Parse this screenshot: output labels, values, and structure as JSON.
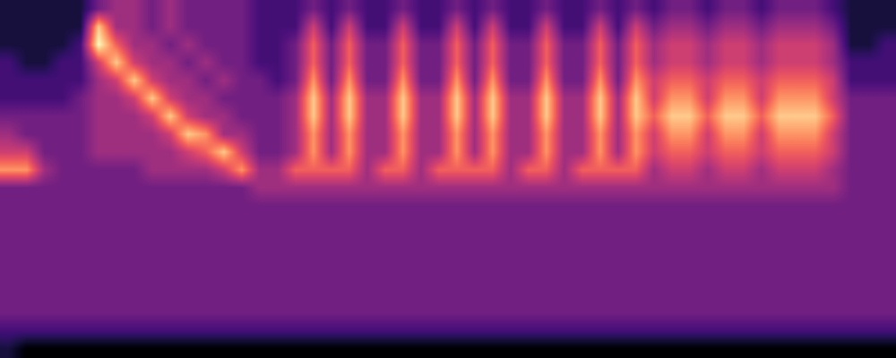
{
  "chart_data": {
    "type": "heatmap",
    "tick_labels": false,
    "color": "magma",
    "zlim": [
      0,
      9
    ],
    "cells": [
      [
        1,
        1,
        1,
        1,
        1,
        3,
        4,
        4,
        3,
        4,
        3,
        3,
        3,
        3,
        2,
        2,
        2,
        3,
        2,
        3,
        2,
        2,
        3,
        2,
        2,
        3,
        2,
        3,
        2,
        2,
        3,
        2,
        2,
        3,
        2,
        3,
        2,
        3,
        3,
        2,
        3,
        3,
        2,
        3,
        3,
        3,
        2,
        1,
        1,
        1
      ],
      [
        1,
        1,
        1,
        1,
        1,
        8,
        4,
        4,
        3,
        4,
        3,
        3,
        3,
        3,
        2,
        2,
        2,
        5,
        2,
        5,
        2,
        2,
        5,
        2,
        2,
        5,
        2,
        5,
        2,
        2,
        5,
        2,
        2,
        5,
        2,
        5,
        3,
        4,
        4,
        3,
        4,
        4,
        3,
        4,
        4,
        4,
        3,
        1,
        1,
        1
      ],
      [
        1,
        1,
        1,
        1,
        2,
        9,
        6,
        4,
        4,
        3,
        4,
        3,
        3,
        3,
        2,
        2,
        3,
        6,
        3,
        6,
        3,
        3,
        6,
        3,
        3,
        6,
        3,
        6,
        3,
        3,
        6,
        3,
        3,
        6,
        3,
        6,
        4,
        5,
        5,
        4,
        5,
        5,
        4,
        5,
        5,
        5,
        4,
        1,
        1,
        2
      ],
      [
        2,
        1,
        1,
        2,
        2,
        5,
        8,
        5,
        4,
        4,
        3,
        4,
        3,
        3,
        2,
        2,
        3,
        6,
        3,
        6,
        3,
        3,
        6,
        3,
        3,
        6,
        3,
        6,
        3,
        3,
        6,
        3,
        3,
        6,
        3,
        6,
        4,
        5,
        5,
        4,
        5,
        5,
        4,
        5,
        5,
        5,
        4,
        2,
        2,
        2
      ],
      [
        2,
        2,
        2,
        2,
        2,
        4,
        5,
        8,
        5,
        4,
        4,
        3,
        4,
        3,
        3,
        2,
        3,
        7,
        3,
        7,
        3,
        3,
        7,
        3,
        3,
        7,
        3,
        7,
        3,
        3,
        7,
        3,
        3,
        7,
        3,
        7,
        5,
        6,
        6,
        5,
        6,
        6,
        5,
        6,
        6,
        6,
        5,
        2,
        2,
        2
      ],
      [
        2,
        2,
        2,
        2,
        3,
        4,
        4,
        5,
        8,
        5,
        4,
        4,
        3,
        3,
        3,
        3,
        4,
        8,
        4,
        8,
        4,
        4,
        8,
        4,
        4,
        8,
        4,
        8,
        4,
        4,
        8,
        4,
        4,
        8,
        4,
        8,
        5,
        7,
        7,
        5,
        7,
        7,
        5,
        7,
        7,
        7,
        5,
        3,
        3,
        3
      ],
      [
        3,
        3,
        3,
        3,
        3,
        4,
        4,
        4,
        5,
        8,
        5,
        4,
        4,
        3,
        3,
        3,
        4,
        8,
        4,
        8,
        4,
        4,
        8,
        4,
        4,
        8,
        4,
        8,
        4,
        4,
        8,
        4,
        4,
        8,
        4,
        8,
        6,
        8,
        8,
        6,
        8,
        8,
        6,
        8,
        8,
        8,
        6,
        3,
        3,
        3
      ],
      [
        4,
        3,
        3,
        3,
        3,
        4,
        4,
        4,
        4,
        5,
        8,
        7,
        4,
        4,
        3,
        3,
        4,
        7,
        4,
        7,
        4,
        4,
        7,
        4,
        4,
        7,
        4,
        7,
        4,
        4,
        7,
        4,
        4,
        7,
        4,
        7,
        5,
        7,
        7,
        5,
        7,
        7,
        5,
        7,
        7,
        7,
        5,
        3,
        3,
        3
      ],
      [
        5,
        5,
        3,
        3,
        3,
        4,
        4,
        4,
        4,
        4,
        5,
        6,
        8,
        5,
        3,
        3,
        4,
        7,
        4,
        7,
        4,
        4,
        7,
        4,
        4,
        7,
        4,
        7,
        4,
        4,
        7,
        4,
        4,
        7,
        4,
        7,
        5,
        6,
        6,
        5,
        6,
        6,
        5,
        6,
        6,
        6,
        5,
        3,
        3,
        3
      ],
      [
        7,
        7,
        4,
        3,
        3,
        3,
        3,
        3,
        4,
        4,
        4,
        4,
        5,
        7,
        4,
        4,
        6,
        6,
        6,
        6,
        4,
        6,
        6,
        4,
        6,
        6,
        6,
        6,
        4,
        6,
        6,
        4,
        6,
        6,
        6,
        6,
        4,
        5,
        5,
        4,
        5,
        5,
        4,
        5,
        5,
        5,
        4,
        3,
        3,
        3
      ],
      [
        3,
        3,
        3,
        3,
        3,
        3,
        3,
        3,
        3,
        3,
        3,
        3,
        3,
        3,
        4,
        4,
        4,
        4,
        4,
        4,
        4,
        4,
        4,
        4,
        4,
        4,
        4,
        4,
        4,
        4,
        4,
        4,
        4,
        4,
        4,
        4,
        4,
        4,
        4,
        4,
        4,
        4,
        4,
        4,
        4,
        4,
        4,
        3,
        3,
        3
      ],
      [
        3,
        3,
        3,
        3,
        3,
        3,
        3,
        3,
        3,
        3,
        3,
        3,
        3,
        3,
        3,
        3,
        3,
        3,
        3,
        3,
        3,
        3,
        3,
        3,
        3,
        3,
        3,
        3,
        3,
        3,
        3,
        3,
        3,
        3,
        3,
        3,
        3,
        3,
        3,
        3,
        3,
        3,
        3,
        3,
        3,
        3,
        3,
        3,
        3,
        3
      ],
      [
        3,
        3,
        3,
        3,
        3,
        3,
        3,
        3,
        3,
        3,
        3,
        3,
        3,
        3,
        3,
        3,
        3,
        3,
        3,
        3,
        3,
        3,
        3,
        3,
        3,
        3,
        3,
        3,
        3,
        3,
        3,
        3,
        3,
        3,
        3,
        3,
        3,
        3,
        3,
        3,
        3,
        3,
        3,
        3,
        3,
        3,
        3,
        3,
        3,
        3
      ],
      [
        3,
        3,
        3,
        3,
        3,
        3,
        3,
        3,
        3,
        3,
        3,
        3,
        3,
        3,
        3,
        3,
        3,
        3,
        3,
        3,
        3,
        3,
        3,
        3,
        3,
        3,
        3,
        3,
        3,
        3,
        3,
        3,
        3,
        3,
        3,
        3,
        3,
        3,
        3,
        3,
        3,
        3,
        3,
        3,
        3,
        3,
        3,
        3,
        3,
        3
      ],
      [
        3,
        3,
        3,
        3,
        3,
        3,
        3,
        3,
        3,
        3,
        3,
        3,
        3,
        3,
        3,
        3,
        3,
        3,
        3,
        3,
        3,
        3,
        3,
        3,
        3,
        3,
        3,
        3,
        3,
        3,
        3,
        3,
        3,
        3,
        3,
        3,
        3,
        3,
        3,
        3,
        3,
        3,
        3,
        3,
        3,
        3,
        3,
        3,
        3,
        3
      ],
      [
        3,
        3,
        3,
        3,
        3,
        3,
        3,
        3,
        3,
        3,
        3,
        3,
        3,
        3,
        3,
        3,
        3,
        3,
        3,
        3,
        3,
        3,
        3,
        3,
        3,
        3,
        3,
        3,
        3,
        3,
        3,
        3,
        3,
        3,
        3,
        3,
        3,
        3,
        3,
        3,
        3,
        3,
        3,
        3,
        3,
        3,
        3,
        3,
        3,
        3
      ],
      [
        3,
        3,
        3,
        3,
        3,
        3,
        3,
        3,
        3,
        3,
        3,
        3,
        3,
        3,
        3,
        3,
        3,
        3,
        3,
        3,
        3,
        3,
        3,
        3,
        3,
        3,
        3,
        3,
        3,
        3,
        3,
        3,
        3,
        3,
        3,
        3,
        3,
        3,
        3,
        3,
        3,
        3,
        3,
        3,
        3,
        3,
        3,
        3,
        3,
        3
      ],
      [
        3,
        3,
        3,
        3,
        3,
        3,
        3,
        3,
        3,
        3,
        3,
        3,
        3,
        3,
        3,
        3,
        3,
        3,
        3,
        3,
        3,
        3,
        3,
        3,
        3,
        3,
        3,
        3,
        3,
        3,
        3,
        3,
        3,
        3,
        3,
        3,
        3,
        3,
        3,
        3,
        3,
        3,
        3,
        3,
        3,
        3,
        3,
        3,
        3,
        3
      ],
      [
        2,
        2,
        2,
        2,
        2,
        2,
        2,
        2,
        2,
        2,
        2,
        2,
        2,
        2,
        2,
        2,
        2,
        2,
        2,
        2,
        2,
        2,
        2,
        2,
        2,
        2,
        2,
        2,
        2,
        2,
        2,
        2,
        2,
        2,
        2,
        2,
        2,
        2,
        2,
        2,
        2,
        2,
        2,
        2,
        2,
        2,
        2,
        2,
        2,
        2
      ],
      [
        1,
        0,
        0,
        0,
        0,
        0,
        0,
        0,
        0,
        0,
        0,
        0,
        0,
        0,
        0,
        0,
        0,
        0,
        0,
        0,
        0,
        0,
        0,
        0,
        0,
        0,
        0,
        0,
        0,
        0,
        0,
        0,
        0,
        0,
        0,
        0,
        0,
        0,
        0,
        0,
        0,
        0,
        0,
        0,
        0,
        0,
        0,
        0,
        0,
        0
      ]
    ]
  }
}
